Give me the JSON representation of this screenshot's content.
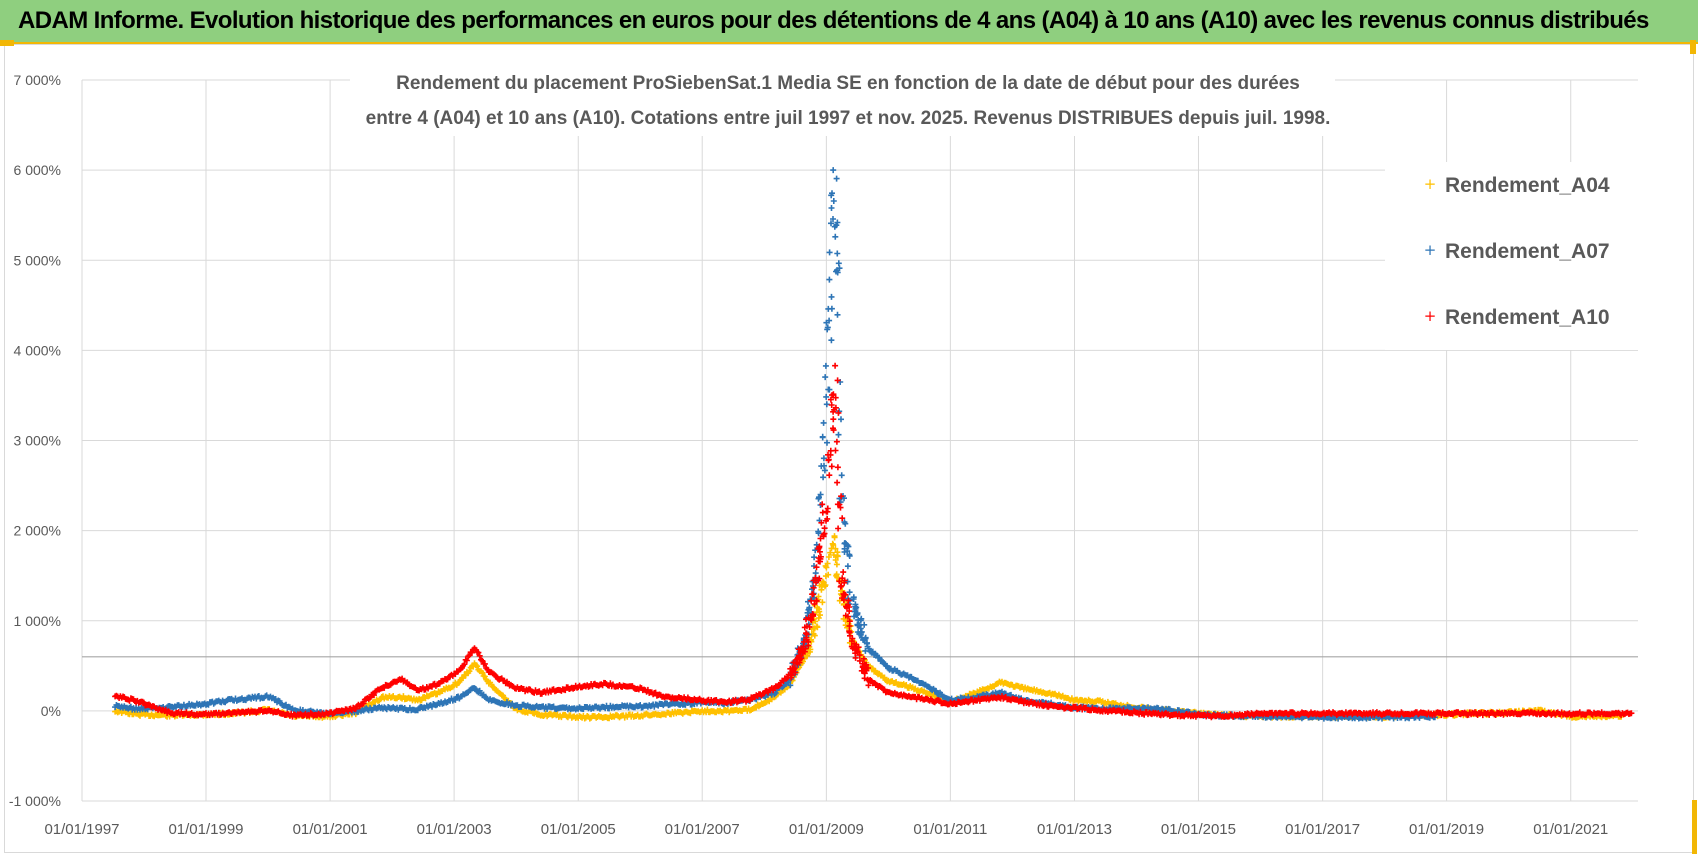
{
  "banner": {
    "title": "ADAM Informe. Evolution historique des performances en euros pour des détentions de 4 ans (A04) à 10 ans (A10) avec les revenus connus distribués"
  },
  "colors": {
    "banner_bg": "#8fcf7f",
    "accent": "#f2b705",
    "A04": "#ffc000",
    "A07": "#2e75b6",
    "A10": "#ff0000",
    "grid": "#d9d9d9"
  },
  "chart_data": {
    "type": "scatter",
    "title_lines": [
      "Rendement du placement ProSiebenSat.1 Media SE en fonction de la date de début pour des durées",
      "entre 4 (A04) et 10 ans (A10). Cotations entre juil 1997 et nov. 2025. Revenus DISTRIBUES depuis juil. 1998."
    ],
    "xlabel": "",
    "ylabel": "",
    "x_range": [
      "1997-01-01",
      "2022-02-01"
    ],
    "y_range": [
      -1000,
      7000
    ],
    "y_unit": "%",
    "y_ticks": [
      {
        "value": 7000,
        "label": "7 000%"
      },
      {
        "value": 6000,
        "label": "6 000%"
      },
      {
        "value": 5000,
        "label": "5 000%"
      },
      {
        "value": 4000,
        "label": "4 000%"
      },
      {
        "value": 3000,
        "label": "3 000%"
      },
      {
        "value": 2000,
        "label": "2 000%"
      },
      {
        "value": 1000,
        "label": "1 000%"
      },
      {
        "value": 0,
        "label": "0%"
      },
      {
        "value": -1000,
        "label": "-1 000%"
      }
    ],
    "x_ticks": [
      {
        "value": "1997-01-01",
        "label": "01/01/1997"
      },
      {
        "value": "1999-01-01",
        "label": "01/01/1999"
      },
      {
        "value": "2001-01-01",
        "label": "01/01/2001"
      },
      {
        "value": "2003-01-01",
        "label": "01/01/2003"
      },
      {
        "value": "2005-01-01",
        "label": "01/01/2005"
      },
      {
        "value": "2007-01-01",
        "label": "01/01/2007"
      },
      {
        "value": "2009-01-01",
        "label": "01/01/2009"
      },
      {
        "value": "2011-01-01",
        "label": "01/01/2011"
      },
      {
        "value": "2013-01-01",
        "label": "01/01/2013"
      },
      {
        "value": "2015-01-01",
        "label": "01/01/2015"
      },
      {
        "value": "2017-01-01",
        "label": "01/01/2017"
      },
      {
        "value": "2019-01-01",
        "label": "01/01/2019"
      },
      {
        "value": "2021-01-01",
        "label": "01/01/2021"
      }
    ],
    "reference_line": 600,
    "grid": true,
    "legend_position": "top-right",
    "series": [
      {
        "name": "Rendement_A04",
        "color": "#ffc000",
        "points": [
          [
            "1997-07-15",
            0
          ],
          [
            "1997-12-01",
            -40
          ],
          [
            "1998-06-01",
            -50
          ],
          [
            "1999-01-01",
            -40
          ],
          [
            "1999-06-01",
            -30
          ],
          [
            "2000-01-01",
            10
          ],
          [
            "2000-06-01",
            -60
          ],
          [
            "2001-01-01",
            -60
          ],
          [
            "2001-06-01",
            -20
          ],
          [
            "2001-11-01",
            150
          ],
          [
            "2002-03-01",
            150
          ],
          [
            "2002-06-01",
            120
          ],
          [
            "2002-10-01",
            200
          ],
          [
            "2003-02-01",
            320
          ],
          [
            "2003-05-01",
            520
          ],
          [
            "2003-08-01",
            300
          ],
          [
            "2004-01-01",
            20
          ],
          [
            "2004-06-01",
            -40
          ],
          [
            "2005-01-01",
            -70
          ],
          [
            "2005-06-01",
            -70
          ],
          [
            "2006-01-01",
            -50
          ],
          [
            "2006-06-01",
            -30
          ],
          [
            "2007-01-01",
            0
          ],
          [
            "2007-06-01",
            0
          ],
          [
            "2007-10-01",
            10
          ],
          [
            "2008-03-01",
            150
          ],
          [
            "2008-06-01",
            300
          ],
          [
            "2008-09-01",
            600
          ],
          [
            "2008-11-01",
            1000
          ],
          [
            "2009-01-01",
            1600
          ],
          [
            "2009-02-15",
            1900
          ],
          [
            "2009-04-01",
            1300
          ],
          [
            "2009-06-01",
            800
          ],
          [
            "2009-09-01",
            500
          ],
          [
            "2010-01-01",
            330
          ],
          [
            "2010-06-01",
            250
          ],
          [
            "2011-01-01",
            100
          ],
          [
            "2011-06-01",
            200
          ],
          [
            "2011-11-01",
            320
          ],
          [
            "2012-03-01",
            250
          ],
          [
            "2012-08-01",
            200
          ],
          [
            "2013-01-01",
            120
          ],
          [
            "2013-06-01",
            100
          ],
          [
            "2014-01-01",
            40
          ],
          [
            "2014-06-01",
            10
          ],
          [
            "2015-01-01",
            -30
          ],
          [
            "2015-06-01",
            -50
          ],
          [
            "2016-01-01",
            -60
          ],
          [
            "2017-01-01",
            -60
          ],
          [
            "2018-01-01",
            -60
          ],
          [
            "2019-01-01",
            -40
          ],
          [
            "2020-01-01",
            -20
          ],
          [
            "2020-07-01",
            0
          ],
          [
            "2021-01-01",
            -60
          ],
          [
            "2021-11-01",
            -60
          ]
        ]
      },
      {
        "name": "Rendement_A07",
        "color": "#2e75b6",
        "points": [
          [
            "1997-07-15",
            50
          ],
          [
            "1997-12-01",
            20
          ],
          [
            "1998-06-01",
            40
          ],
          [
            "1999-01-01",
            80
          ],
          [
            "1999-06-01",
            120
          ],
          [
            "2000-01-01",
            160
          ],
          [
            "2000-06-01",
            10
          ],
          [
            "2001-01-01",
            -40
          ],
          [
            "2001-06-01",
            0
          ],
          [
            "2001-11-01",
            40
          ],
          [
            "2002-03-01",
            20
          ],
          [
            "2002-06-01",
            20
          ],
          [
            "2002-10-01",
            80
          ],
          [
            "2003-02-01",
            150
          ],
          [
            "2003-05-01",
            250
          ],
          [
            "2003-08-01",
            120
          ],
          [
            "2004-01-01",
            60
          ],
          [
            "2004-06-01",
            40
          ],
          [
            "2005-01-01",
            30
          ],
          [
            "2005-06-01",
            40
          ],
          [
            "2006-01-01",
            50
          ],
          [
            "2006-06-01",
            70
          ],
          [
            "2007-01-01",
            90
          ],
          [
            "2007-06-01",
            90
          ],
          [
            "2007-10-01",
            120
          ],
          [
            "2008-03-01",
            200
          ],
          [
            "2008-06-01",
            350
          ],
          [
            "2008-09-01",
            800
          ],
          [
            "2008-11-01",
            1500
          ],
          [
            "2009-01-01",
            3600
          ],
          [
            "2009-02-15",
            5900
          ],
          [
            "2009-03-15",
            4700
          ],
          [
            "2009-04-01",
            2500
          ],
          [
            "2009-06-01",
            1200
          ],
          [
            "2009-09-01",
            700
          ],
          [
            "2010-01-01",
            480
          ],
          [
            "2010-06-01",
            350
          ],
          [
            "2011-01-01",
            120
          ],
          [
            "2011-06-01",
            150
          ],
          [
            "2011-11-01",
            200
          ],
          [
            "2012-03-01",
            120
          ],
          [
            "2012-08-01",
            80
          ],
          [
            "2013-01-01",
            40
          ],
          [
            "2013-06-01",
            20
          ],
          [
            "2014-01-01",
            30
          ],
          [
            "2014-06-01",
            20
          ],
          [
            "2015-01-01",
            -40
          ],
          [
            "2015-06-01",
            -50
          ],
          [
            "2016-01-01",
            -60
          ],
          [
            "2017-01-01",
            -70
          ],
          [
            "2018-01-01",
            -70
          ],
          [
            "2018-11-01",
            -60
          ]
        ]
      },
      {
        "name": "Rendement_A10",
        "color": "#ff0000",
        "points": [
          [
            "1997-07-15",
            170
          ],
          [
            "1997-12-01",
            100
          ],
          [
            "1998-06-01",
            -20
          ],
          [
            "1999-01-01",
            -40
          ],
          [
            "1999-06-01",
            -20
          ],
          [
            "2000-01-01",
            0
          ],
          [
            "2000-06-01",
            -50
          ],
          [
            "2001-01-01",
            -30
          ],
          [
            "2001-06-01",
            30
          ],
          [
            "2001-11-01",
            260
          ],
          [
            "2002-03-01",
            350
          ],
          [
            "2002-06-01",
            220
          ],
          [
            "2002-10-01",
            300
          ],
          [
            "2003-02-01",
            450
          ],
          [
            "2003-05-01",
            700
          ],
          [
            "2003-08-01",
            420
          ],
          [
            "2004-01-01",
            250
          ],
          [
            "2004-06-01",
            200
          ],
          [
            "2005-01-01",
            270
          ],
          [
            "2005-06-01",
            300
          ],
          [
            "2006-01-01",
            250
          ],
          [
            "2006-06-01",
            150
          ],
          [
            "2007-01-01",
            120
          ],
          [
            "2007-06-01",
            100
          ],
          [
            "2007-10-01",
            120
          ],
          [
            "2008-03-01",
            250
          ],
          [
            "2008-06-01",
            400
          ],
          [
            "2008-09-01",
            750
          ],
          [
            "2008-11-01",
            1400
          ],
          [
            "2009-01-01",
            2300
          ],
          [
            "2009-02-15",
            3700
          ],
          [
            "2009-04-01",
            1500
          ],
          [
            "2009-06-01",
            800
          ],
          [
            "2009-09-01",
            350
          ],
          [
            "2010-01-01",
            200
          ],
          [
            "2010-06-01",
            150
          ],
          [
            "2011-01-01",
            80
          ],
          [
            "2011-06-01",
            120
          ],
          [
            "2011-11-01",
            150
          ],
          [
            "2012-03-01",
            100
          ],
          [
            "2012-08-01",
            60
          ],
          [
            "2013-01-01",
            30
          ],
          [
            "2013-06-01",
            10
          ],
          [
            "2014-01-01",
            -20
          ],
          [
            "2014-06-01",
            -40
          ],
          [
            "2015-01-01",
            -50
          ],
          [
            "2015-06-01",
            -60
          ],
          [
            "2016-01-01",
            -30
          ],
          [
            "2017-01-01",
            -30
          ],
          [
            "2018-01-01",
            -30
          ],
          [
            "2019-01-01",
            -30
          ],
          [
            "2020-01-01",
            -30
          ],
          [
            "2021-01-01",
            -30
          ],
          [
            "2022-01-01",
            -30
          ]
        ]
      }
    ]
  }
}
